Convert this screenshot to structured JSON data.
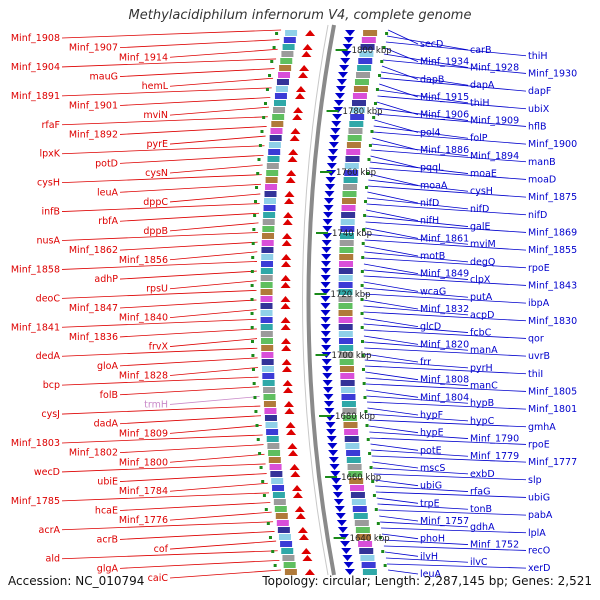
{
  "header": {
    "title": "Methylacidiphilum infernorum V4, complete genome"
  },
  "footer": {
    "accession": "Accession: NC_010794",
    "topology": "Topology: circular; Length: 2,287,145 bp; Genes: 2,521"
  },
  "colors": {
    "left_strand": "#dd0000",
    "right_strand": "#0000cc",
    "rna": "#c98ac9",
    "backbone": "#777777",
    "tick": "#1a8a1a"
  },
  "scale_ticks": [
    {
      "label": "1800 kbp"
    },
    {
      "label": "1780 kbp"
    },
    {
      "label": "1760 kbp"
    },
    {
      "label": "1740 kbp"
    },
    {
      "label": "1720 kbp"
    },
    {
      "label": "1700 kbp"
    },
    {
      "label": "1680 kbp"
    },
    {
      "label": "1660 kbp"
    },
    {
      "label": "1640 kbp"
    }
  ],
  "left_labels": [
    "Minf_1908",
    "Minf_1907",
    "Minf_1914",
    "Minf_1904",
    "mauG",
    "hemL",
    "Minf_1891",
    "Minf_1901",
    "mviN",
    "rfaF",
    "Minf_1892",
    "pyrE",
    "lpxK",
    "potD",
    "cysN",
    "cysH",
    "leuA",
    "dppC",
    "infB",
    "rbfA",
    "dppB",
    "nusA",
    "Minf_1862",
    "Minf_1856",
    "Minf_1858",
    "adhP",
    "rpsU",
    "deoC",
    "Minf_1847",
    "Minf_1840",
    "Minf_1841",
    "Minf_1836",
    "frvX",
    "dedA",
    "gloA",
    "Minf_1828",
    "bcp",
    "folB",
    "trmH",
    "cysJ",
    "dadA",
    "Minf_1809",
    "Minf_1803",
    "Minf_1802",
    "Minf_1800",
    "wecD",
    "ubiE",
    "Minf_1784",
    "Minf_1785",
    "hcaE",
    "Minf_1776",
    "acrA",
    "acrB",
    "cof",
    "ald",
    "glgA",
    "caiC"
  ],
  "right_labels": [
    "secD",
    "carB",
    "thiH",
    "Minf_1934",
    "Minf_1928",
    "Minf_1930",
    "dapB",
    "dapA",
    "dapF",
    "Minf_1915",
    "thiH",
    "ubiX",
    "Minf_1906",
    "Minf_1909",
    "hflB",
    "pol4",
    "folP",
    "Minf_1900",
    "Minf_1886",
    "Minf_1894",
    "manB",
    "pqqL",
    "moaE",
    "moaD",
    "moaA",
    "cysH",
    "Minf_1875",
    "nifD",
    "nifD",
    "nifD",
    "nifH",
    "galE",
    "Minf_1869",
    "Minf_1861",
    "mviM",
    "Minf_1855",
    "motB",
    "degQ",
    "rpoE",
    "Minf_1849",
    "clpX",
    "Minf_1843",
    "wcaG",
    "putA",
    "ibpA",
    "Minf_1832",
    "acpD",
    "Minf_1830",
    "glcD",
    "fcbC",
    "qor",
    "Minf_1820",
    "manA",
    "uvrB",
    "frr",
    "pyrH",
    "thiI",
    "Minf_1808",
    "manC",
    "Minf_1805",
    "Minf_1804",
    "hypB",
    "Minf_1801",
    "hypF",
    "hypC",
    "gmhA",
    "hypE",
    "Minf_1790",
    "rpoE",
    "potE",
    "Minf_1779",
    "Minf_1777",
    "mscS",
    "exbD",
    "slp",
    "ubiG",
    "rfaG",
    "ubiG",
    "trpE",
    "tonB",
    "pabA",
    "Minf_1757",
    "gdhA",
    "lplA",
    "phoH",
    "Minf_1752",
    "recO",
    "ilvH",
    "ilvC",
    "xerD",
    "leuA"
  ]
}
